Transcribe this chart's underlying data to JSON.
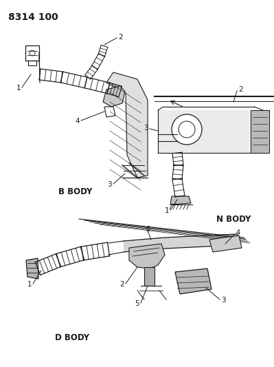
{
  "title_text": "8314 100",
  "background_color": "#ffffff",
  "diagram_color": "#1a1a1a",
  "labels": {
    "b_body": "B BODY",
    "n_body": "N BODY",
    "d_body": "D BODY"
  },
  "figsize": [
    3.99,
    5.33
  ],
  "dpi": 100
}
